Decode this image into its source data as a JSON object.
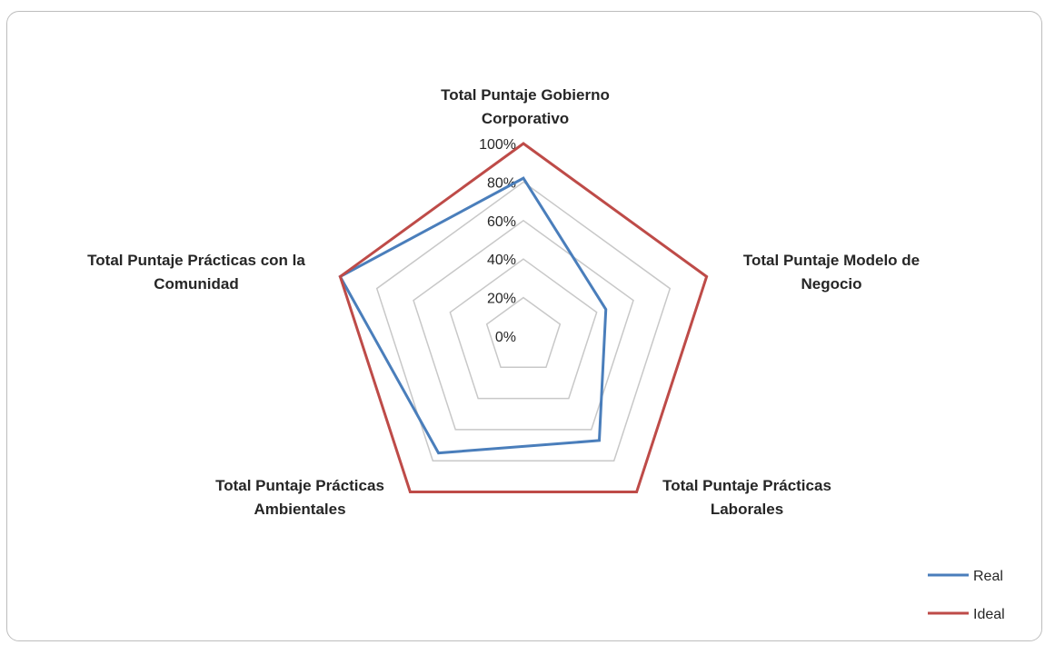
{
  "chart_data": {
    "type": "radar",
    "axes": [
      [
        "Total Puntaje Gobierno",
        "Corporativo"
      ],
      [
        "Total Puntaje Modelo de",
        "Negocio"
      ],
      [
        "Total Puntaje Prácticas",
        "Laborales"
      ],
      [
        "Total Puntaje Prácticas",
        "Ambientales"
      ],
      [
        "Total Puntaje Prácticas con la",
        "Comunidad"
      ]
    ],
    "ticks": [
      "0%",
      "20%",
      "40%",
      "60%",
      "80%",
      "100%"
    ],
    "tick_values": [
      0,
      20,
      40,
      60,
      80,
      100
    ],
    "rmax": 100,
    "series": [
      {
        "name": "Real",
        "values": [
          82,
          45,
          67,
          75,
          100
        ],
        "color": "#4a7ebb"
      },
      {
        "name": "Ideal",
        "values": [
          100,
          100,
          100,
          100,
          100
        ],
        "color": "#be4b48"
      }
    ],
    "grid_color": "#c8c8c8",
    "grid": true,
    "legend_position": "bottom-right"
  }
}
